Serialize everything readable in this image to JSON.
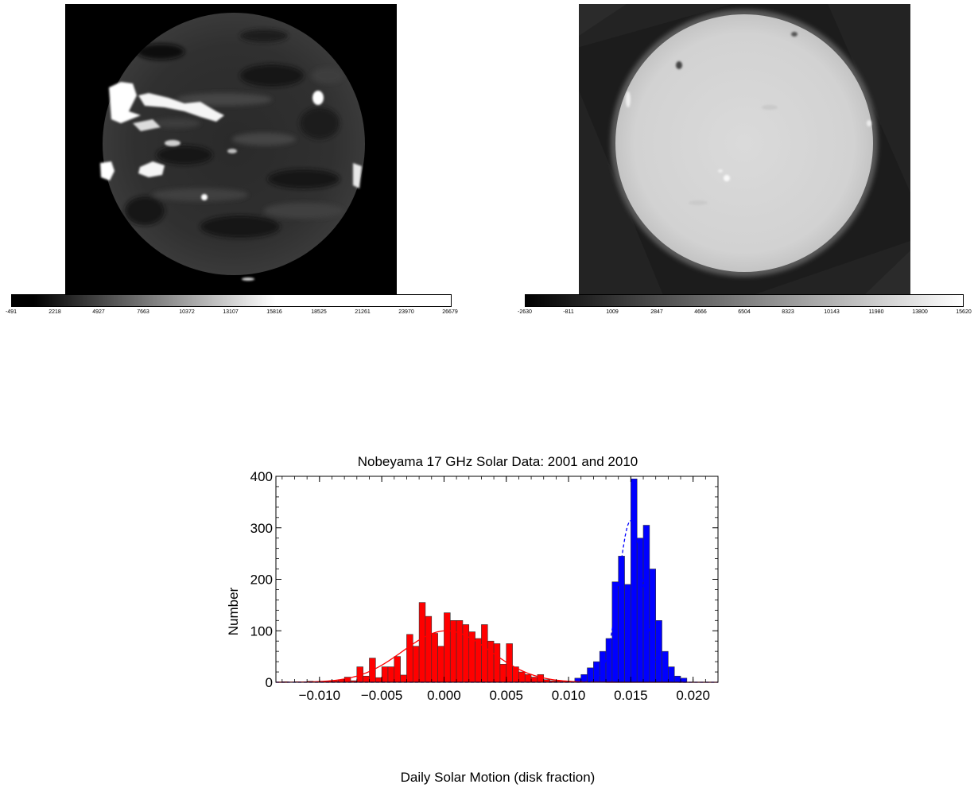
{
  "left_image": {
    "colorbar": {
      "ticks": [
        "-491",
        "2218",
        "4927",
        "7663",
        "10372",
        "13107",
        "15816",
        "18525",
        "21261",
        "23970",
        "26679"
      ],
      "gradient": [
        "#000000",
        "#ffffff"
      ]
    }
  },
  "right_image": {
    "colorbar": {
      "ticks": [
        "-2630",
        "-811",
        "1009",
        "2847",
        "4666",
        "6504",
        "8323",
        "10143",
        "11980",
        "13800",
        "15620"
      ],
      "gradient": [
        "#000000",
        "#ffffff"
      ]
    }
  },
  "chart_data": {
    "type": "bar",
    "title": "Nobeyama 17 GHz Solar Data: 2001 and 2010",
    "xlabel": "Daily Solar Motion (disk fraction)",
    "ylabel": "Number",
    "xlim": [
      -0.0135,
      0.022
    ],
    "ylim": [
      0,
      400
    ],
    "xticks": [
      "-0.010",
      "-0.005",
      "0.000",
      "0.005",
      "0.010",
      "0.015",
      "0.020"
    ],
    "xtick_values": [
      -0.01,
      -0.005,
      0.0,
      0.005,
      0.01,
      0.015,
      0.02
    ],
    "yticks": [
      "0",
      "100",
      "200",
      "300",
      "400"
    ],
    "ytick_values": [
      0,
      100,
      200,
      300,
      400
    ],
    "bin_width": 0.0005,
    "series": [
      {
        "color": "#ff0000",
        "fit_style": "solid",
        "bin_starts": [
          -0.013,
          -0.0125,
          -0.012,
          -0.0115,
          -0.011,
          -0.0105,
          -0.01,
          -0.0095,
          -0.009,
          -0.0085,
          -0.008,
          -0.0075,
          -0.007,
          -0.0065,
          -0.006,
          -0.0055,
          -0.005,
          -0.0045,
          -0.004,
          -0.0035,
          -0.003,
          -0.0025,
          -0.002,
          -0.0015,
          -0.001,
          -0.0005,
          0.0,
          0.0005,
          0.001,
          0.0015,
          0.002,
          0.0025,
          0.003,
          0.0035,
          0.004,
          0.0045,
          0.005,
          0.0055,
          0.006,
          0.0065,
          0.007,
          0.0075,
          0.008,
          0.0085,
          0.009,
          0.0095,
          0.01
        ],
        "values": [
          1,
          0,
          1,
          0,
          2,
          1,
          2,
          2,
          3,
          5,
          10,
          3,
          30,
          12,
          47,
          9,
          30,
          30,
          50,
          14,
          93,
          70,
          155,
          128,
          95,
          70,
          135,
          120,
          120,
          112,
          98,
          85,
          112,
          80,
          75,
          35,
          75,
          30,
          20,
          15,
          10,
          15,
          5,
          3,
          3,
          2,
          1
        ],
        "fit": {
          "amplitude": 100,
          "mean": 0.0002,
          "sigma": 0.0035
        }
      },
      {
        "color": "#0000ff",
        "fit_style": "dashed",
        "bin_starts": [
          0.0105,
          0.011,
          0.0115,
          0.012,
          0.0125,
          0.013,
          0.0135,
          0.014,
          0.0145,
          0.015,
          0.0155,
          0.016,
          0.0165,
          0.017,
          0.0175,
          0.018,
          0.0185,
          0.019
        ],
        "values": [
          8,
          15,
          28,
          40,
          60,
          85,
          195,
          245,
          190,
          395,
          280,
          305,
          220,
          120,
          60,
          30,
          12,
          8
        ],
        "fit": {
          "amplitude": 315,
          "mean": 0.015,
          "sigma": 0.001
        }
      }
    ]
  }
}
